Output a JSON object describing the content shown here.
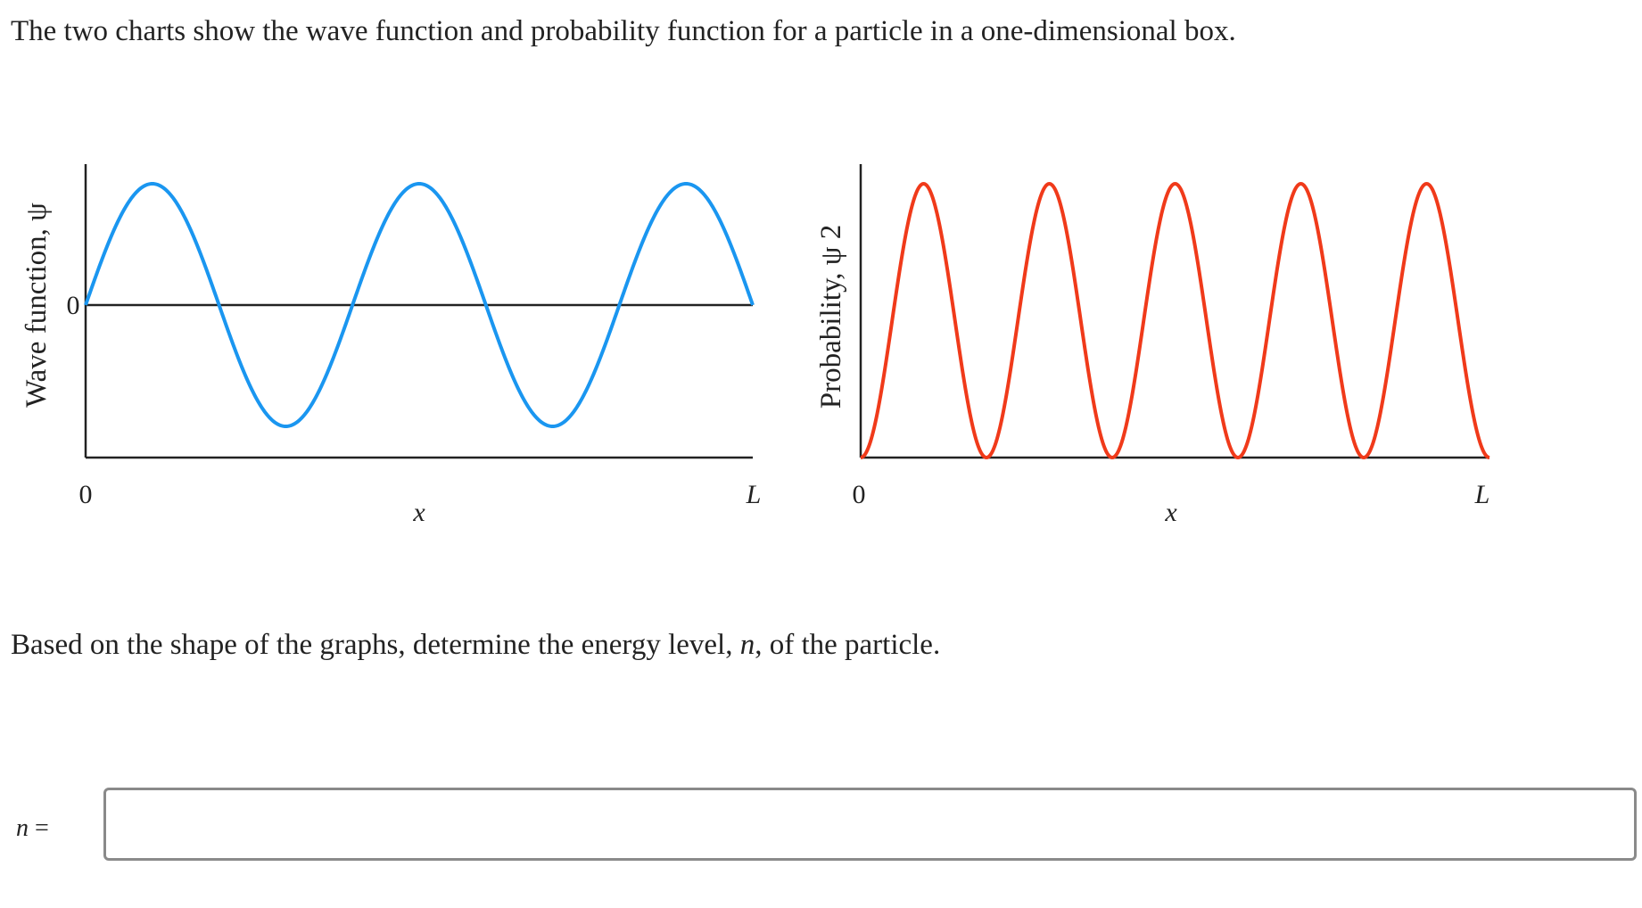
{
  "prompt": "The two charts show the wave function and probability function for a particle in a one-dimensional box.",
  "question": {
    "before": "Based on the shape of the graphs, determine the energy level, ",
    "variable": "n",
    "after": ", of the particle."
  },
  "answer": {
    "variable": "n",
    "equals": " =",
    "value": "",
    "placeholder": ""
  },
  "chart_data": [
    {
      "type": "line",
      "title": "",
      "ylabel": "Wave function, ψ",
      "xlabel": "x",
      "x_ticks": [
        "0",
        "L"
      ],
      "y_ticks": [
        "0"
      ],
      "function": "sin(n·π·x/L)",
      "n": 5,
      "xlim": [
        0,
        1
      ],
      "ylim": [
        -1.2,
        1
      ],
      "color": "#1a96f0",
      "grid": false
    },
    {
      "type": "line",
      "title": "",
      "ylabel": "Probability, ψ 2",
      "xlabel": "x",
      "x_ticks": [
        "0",
        "L"
      ],
      "function": "sin²(n·π·x/L)",
      "n": 5,
      "xlim": [
        0,
        1
      ],
      "ylim": [
        0,
        1.1
      ],
      "color": "#f03a1a",
      "grid": false
    }
  ]
}
